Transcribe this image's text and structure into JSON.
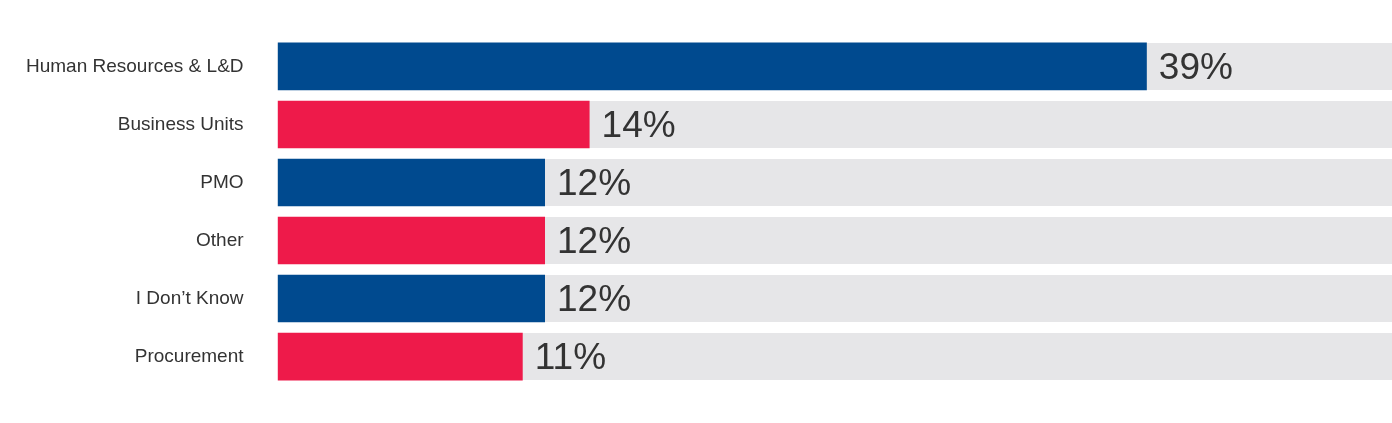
{
  "chart_data": {
    "type": "bar",
    "orientation": "horizontal",
    "categories": [
      "Human Resources & L&D",
      "Business Units",
      "PMO",
      "Other",
      "I Don’t Know",
      "Procurement"
    ],
    "values": [
      39,
      14,
      12,
      12,
      12,
      11
    ],
    "colors": [
      "#004a8f",
      "#ee1a4a",
      "#004a8f",
      "#ee1a4a",
      "#004a8f",
      "#ee1a4a"
    ],
    "value_labels": [
      "39%",
      "14%",
      "12%",
      "12%",
      "12%",
      "11%"
    ],
    "xlim": [
      0,
      50
    ],
    "tick_labels": "y"
  }
}
